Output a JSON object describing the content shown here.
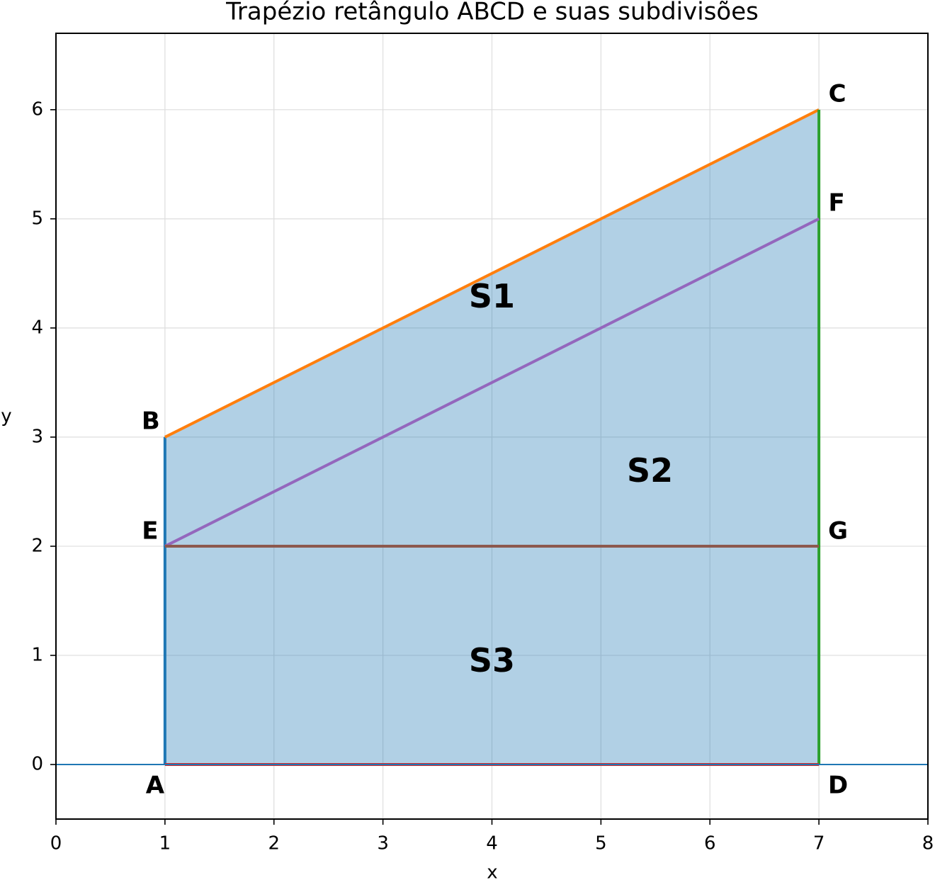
{
  "chart_data": {
    "type": "line",
    "title": "Trapézio retângulo ABCD e suas subdivisões",
    "x_label": "x",
    "y_label": "y",
    "xlim": [
      0,
      8
    ],
    "ylim": [
      -0.5,
      6.7
    ],
    "xticks": [
      0,
      1,
      2,
      3,
      4,
      5,
      6,
      7,
      8
    ],
    "yticks": [
      0,
      1,
      2,
      3,
      4,
      5,
      6
    ],
    "grid": true,
    "fill": {
      "color": "#1f77b4",
      "opacity": 0.35,
      "x": [
        1,
        1,
        7,
        7
      ],
      "values": [
        0,
        3,
        6,
        0
      ]
    },
    "series": [
      {
        "color": "#1f77b4",
        "x": [
          1,
          1
        ],
        "values": [
          0,
          3
        ]
      },
      {
        "color": "#ff7f0e",
        "x": [
          1,
          7
        ],
        "values": [
          3,
          6
        ]
      },
      {
        "color": "#2ca02c",
        "x": [
          7,
          7
        ],
        "values": [
          6,
          0
        ]
      },
      {
        "color": "#d62728",
        "x": [
          7,
          1
        ],
        "values": [
          0,
          0
        ]
      },
      {
        "color": "#9467bd",
        "x": [
          1,
          7
        ],
        "values": [
          2,
          5
        ]
      },
      {
        "color": "#8c564b",
        "x": [
          1,
          7
        ],
        "values": [
          2,
          2
        ]
      }
    ],
    "hline": {
      "value": 0,
      "color": "#1f77b4"
    },
    "points": [
      {
        "label": "A",
        "x": 1,
        "y": 0
      },
      {
        "label": "B",
        "x": 1,
        "y": 3
      },
      {
        "label": "C",
        "x": 7,
        "y": 6
      },
      {
        "label": "D",
        "x": 7,
        "y": 0
      },
      {
        "label": "E",
        "x": 1,
        "y": 2
      },
      {
        "label": "F",
        "x": 7,
        "y": 5
      },
      {
        "label": "G",
        "x": 7,
        "y": 2
      }
    ],
    "regions": [
      {
        "label": "S1",
        "x": 4,
        "y": 4.27
      },
      {
        "label": "S2",
        "x": 5.45,
        "y": 2.67
      },
      {
        "label": "S3",
        "x": 4,
        "y": 0.93
      }
    ]
  }
}
